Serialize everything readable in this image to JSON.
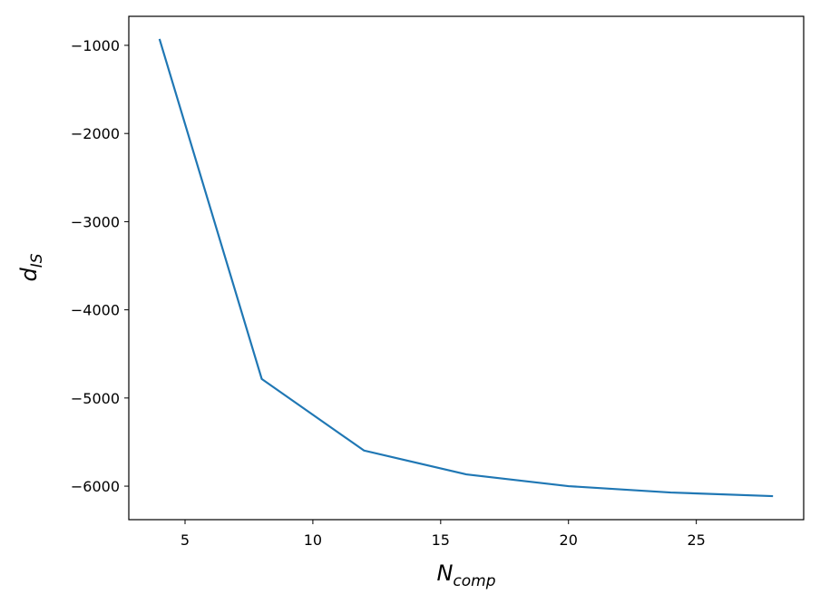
{
  "chart_data": {
    "type": "line",
    "xlabel": {
      "base": "N",
      "sub": "comp"
    },
    "ylabel": {
      "base": "d",
      "sub": "IS"
    },
    "x": [
      4,
      8,
      12,
      16,
      20,
      24,
      28
    ],
    "series": [
      {
        "color": "#1f77b4",
        "values": [
          -928,
          -4784,
          -5596,
          -5866,
          -6000,
          -6072,
          -6113
        ]
      }
    ],
    "xlim": [
      2.8,
      29.2
    ],
    "xticks": [
      5,
      10,
      15,
      20,
      25
    ],
    "ylim": [
      -6380,
      -671
    ],
    "yticks": [
      {
        "value": -6000,
        "label": "−6000"
      },
      {
        "value": -5000,
        "label": "−5000"
      },
      {
        "value": -4000,
        "label": "−4000"
      },
      {
        "value": -3000,
        "label": "−3000"
      },
      {
        "value": -2000,
        "label": "−2000"
      },
      {
        "value": -1000,
        "label": "−1000"
      }
    ],
    "grid": false
  }
}
